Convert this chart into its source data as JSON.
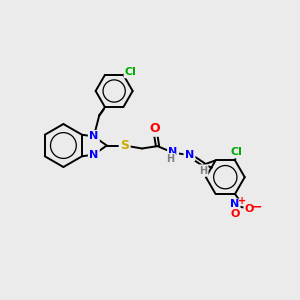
{
  "bg_color": "#ebebeb",
  "bond_color": "#000000",
  "bond_width": 1.4,
  "atom_colors": {
    "N": "#0000ff",
    "S": "#ccaa00",
    "O": "#ff0000",
    "Cl_green": "#00aa00",
    "Cl_teal": "#009090",
    "H": "#808080",
    "C": "#000000"
  },
  "figsize": [
    3.0,
    3.0
  ],
  "dpi": 100
}
